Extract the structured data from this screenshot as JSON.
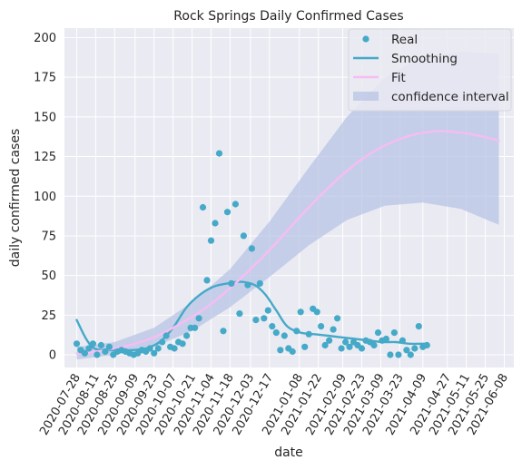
{
  "chart_data": {
    "type": "scatter",
    "title": "Rock Springs Daily Confirmed Cases",
    "xlabel": "date",
    "ylabel": "daily confirmed cases",
    "ylim": [
      -8,
      206
    ],
    "xlim": [
      "2020-07-19",
      "2021-06-15"
    ],
    "yticks": [
      0,
      25,
      50,
      75,
      100,
      125,
      150,
      175,
      200
    ],
    "xticks": [
      "2020-07-28",
      "2020-08-11",
      "2020-08-25",
      "2020-09-09",
      "2020-09-23",
      "2020-10-07",
      "2020-10-21",
      "2020-11-04",
      "2020-11-18",
      "2020-12-03",
      "2020-12-17",
      "2021-01-08",
      "2021-01-22",
      "2021-02-09",
      "2021-02-23",
      "2021-03-09",
      "2021-03-23",
      "2021-04-09",
      "2021-04-27",
      "2021-05-11",
      "2021-05-25",
      "2021-06-08"
    ],
    "grid": true,
    "legend": {
      "position": "top-right",
      "entries": [
        {
          "label": "Real",
          "kind": "marker",
          "color": "#45a9c8"
        },
        {
          "label": "Smoothing",
          "kind": "line",
          "color": "#45a9c8"
        },
        {
          "label": "Fit",
          "kind": "line",
          "color": "#f7bcf4"
        },
        {
          "label": "confidence interval",
          "kind": "patch",
          "color": "#b8c4e4"
        }
      ]
    },
    "colors": {
      "background": "#eaeaf2",
      "grid": "#ffffff",
      "real": "#45a9c8",
      "smoothing": "#45a9c8",
      "fit": "#f7bcf4",
      "confidence": "#b8c4e4"
    },
    "series": [
      {
        "name": "Real",
        "kind": "scatter",
        "points": [
          [
            "2020-07-28",
            7
          ],
          [
            "2020-07-31",
            3
          ],
          [
            "2020-08-03",
            1
          ],
          [
            "2020-08-06",
            4
          ],
          [
            "2020-08-09",
            7
          ],
          [
            "2020-08-12",
            0
          ],
          [
            "2020-08-15",
            6
          ],
          [
            "2020-08-18",
            2
          ],
          [
            "2020-08-21",
            5
          ],
          [
            "2020-08-24",
            0
          ],
          [
            "2020-08-27",
            2
          ],
          [
            "2020-08-30",
            3
          ],
          [
            "2020-09-02",
            2
          ],
          [
            "2020-09-05",
            1
          ],
          [
            "2020-09-08",
            0
          ],
          [
            "2020-09-11",
            1
          ],
          [
            "2020-09-14",
            3
          ],
          [
            "2020-09-17",
            2
          ],
          [
            "2020-09-20",
            4
          ],
          [
            "2020-09-23",
            1
          ],
          [
            "2020-09-26",
            4
          ],
          [
            "2020-09-29",
            8
          ],
          [
            "2020-10-02",
            12
          ],
          [
            "2020-10-05",
            5
          ],
          [
            "2020-10-08",
            4
          ],
          [
            "2020-10-11",
            8
          ],
          [
            "2020-10-14",
            7
          ],
          [
            "2020-10-17",
            12
          ],
          [
            "2020-10-20",
            17
          ],
          [
            "2020-10-23",
            17
          ],
          [
            "2020-10-26",
            23
          ],
          [
            "2020-10-29",
            93
          ],
          [
            "2020-11-01",
            47
          ],
          [
            "2020-11-04",
            72
          ],
          [
            "2020-11-07",
            83
          ],
          [
            "2020-11-10",
            127
          ],
          [
            "2020-11-13",
            15
          ],
          [
            "2020-11-16",
            90
          ],
          [
            "2020-11-19",
            45
          ],
          [
            "2020-11-22",
            95
          ],
          [
            "2020-11-25",
            26
          ],
          [
            "2020-11-28",
            75
          ],
          [
            "2020-12-01",
            44
          ],
          [
            "2020-12-04",
            67
          ],
          [
            "2020-12-07",
            22
          ],
          [
            "2020-12-10",
            45
          ],
          [
            "2020-12-13",
            23
          ],
          [
            "2020-12-16",
            28
          ],
          [
            "2020-12-19",
            18
          ],
          [
            "2020-12-22",
            14
          ],
          [
            "2020-12-25",
            3
          ],
          [
            "2020-12-28",
            12
          ],
          [
            "2020-12-31",
            4
          ],
          [
            "2021-01-03",
            2
          ],
          [
            "2021-01-06",
            15
          ],
          [
            "2021-01-09",
            27
          ],
          [
            "2021-01-12",
            5
          ],
          [
            "2021-01-15",
            13
          ],
          [
            "2021-01-18",
            29
          ],
          [
            "2021-01-21",
            27
          ],
          [
            "2021-01-24",
            18
          ],
          [
            "2021-01-27",
            6
          ],
          [
            "2021-01-30",
            9
          ],
          [
            "2021-02-02",
            16
          ],
          [
            "2021-02-05",
            23
          ],
          [
            "2021-02-08",
            4
          ],
          [
            "2021-02-11",
            8
          ],
          [
            "2021-02-14",
            5
          ],
          [
            "2021-02-17",
            8
          ],
          [
            "2021-02-20",
            6
          ],
          [
            "2021-02-23",
            4
          ],
          [
            "2021-02-26",
            9
          ],
          [
            "2021-03-01",
            8
          ],
          [
            "2021-03-04",
            6
          ],
          [
            "2021-03-07",
            14
          ],
          [
            "2021-03-10",
            9
          ],
          [
            "2021-03-13",
            10
          ],
          [
            "2021-03-16",
            0
          ],
          [
            "2021-03-19",
            14
          ],
          [
            "2021-03-22",
            0
          ],
          [
            "2021-03-25",
            9
          ],
          [
            "2021-03-28",
            3
          ],
          [
            "2021-03-31",
            0
          ],
          [
            "2021-04-03",
            4
          ],
          [
            "2021-04-06",
            18
          ],
          [
            "2021-04-09",
            5
          ],
          [
            "2021-04-12",
            6
          ]
        ]
      },
      {
        "name": "Smoothing",
        "kind": "line",
        "points": [
          [
            "2020-07-28",
            22
          ],
          [
            "2020-08-04",
            10
          ],
          [
            "2020-08-10",
            4
          ],
          [
            "2020-08-18",
            3
          ],
          [
            "2020-08-28",
            3
          ],
          [
            "2020-09-07",
            3
          ],
          [
            "2020-09-17",
            4
          ],
          [
            "2020-09-27",
            8
          ],
          [
            "2020-10-07",
            17
          ],
          [
            "2020-10-17",
            30
          ],
          [
            "2020-10-27",
            38
          ],
          [
            "2020-11-06",
            43
          ],
          [
            "2020-11-16",
            45
          ],
          [
            "2020-11-26",
            46
          ],
          [
            "2020-12-06",
            44
          ],
          [
            "2020-12-14",
            38
          ],
          [
            "2020-12-22",
            28
          ],
          [
            "2020-12-30",
            18
          ],
          [
            "2021-01-09",
            14
          ],
          [
            "2021-01-19",
            13
          ],
          [
            "2021-01-29",
            12
          ],
          [
            "2021-02-08",
            11
          ],
          [
            "2021-02-18",
            10
          ],
          [
            "2021-02-28",
            9
          ],
          [
            "2021-03-10",
            8
          ],
          [
            "2021-03-20",
            8
          ],
          [
            "2021-03-30",
            7
          ],
          [
            "2021-04-12",
            7
          ]
        ]
      },
      {
        "name": "Fit",
        "kind": "line",
        "points": [
          [
            "2020-07-28",
            1
          ],
          [
            "2020-08-11",
            2
          ],
          [
            "2020-08-25",
            4
          ],
          [
            "2020-09-09",
            7
          ],
          [
            "2020-09-23",
            11
          ],
          [
            "2020-10-07",
            17
          ],
          [
            "2020-10-21",
            24
          ],
          [
            "2020-11-04",
            32
          ],
          [
            "2020-11-18",
            42
          ],
          [
            "2020-12-03",
            54
          ],
          [
            "2020-12-17",
            66
          ],
          [
            "2021-01-01",
            80
          ],
          [
            "2021-01-15",
            93
          ],
          [
            "2021-01-29",
            105
          ],
          [
            "2021-02-12",
            116
          ],
          [
            "2021-02-26",
            125
          ],
          [
            "2021-03-12",
            132
          ],
          [
            "2021-03-26",
            137
          ],
          [
            "2021-04-09",
            140
          ],
          [
            "2021-04-23",
            141
          ],
          [
            "2021-05-07",
            140
          ],
          [
            "2021-05-21",
            138
          ],
          [
            "2021-06-04",
            135
          ]
        ]
      },
      {
        "name": "confidence interval",
        "kind": "band",
        "lower": [
          [
            "2020-07-28",
            -3
          ],
          [
            "2020-08-25",
            0
          ],
          [
            "2020-09-23",
            5
          ],
          [
            "2020-10-21",
            15
          ],
          [
            "2020-11-18",
            30
          ],
          [
            "2020-12-17",
            49
          ],
          [
            "2021-01-15",
            69
          ],
          [
            "2021-02-12",
            85
          ],
          [
            "2021-03-12",
            94
          ],
          [
            "2021-04-09",
            96
          ],
          [
            "2021-05-07",
            92
          ],
          [
            "2021-06-04",
            82
          ]
        ],
        "upper": [
          [
            "2020-07-28",
            5
          ],
          [
            "2020-08-25",
            8
          ],
          [
            "2020-09-23",
            17
          ],
          [
            "2020-10-21",
            33
          ],
          [
            "2020-11-18",
            54
          ],
          [
            "2020-12-17",
            84
          ],
          [
            "2021-01-15",
            118
          ],
          [
            "2021-02-12",
            150
          ],
          [
            "2021-03-12",
            175
          ],
          [
            "2021-04-09",
            188
          ],
          [
            "2021-05-07",
            191
          ],
          [
            "2021-06-04",
            190
          ]
        ]
      }
    ]
  }
}
